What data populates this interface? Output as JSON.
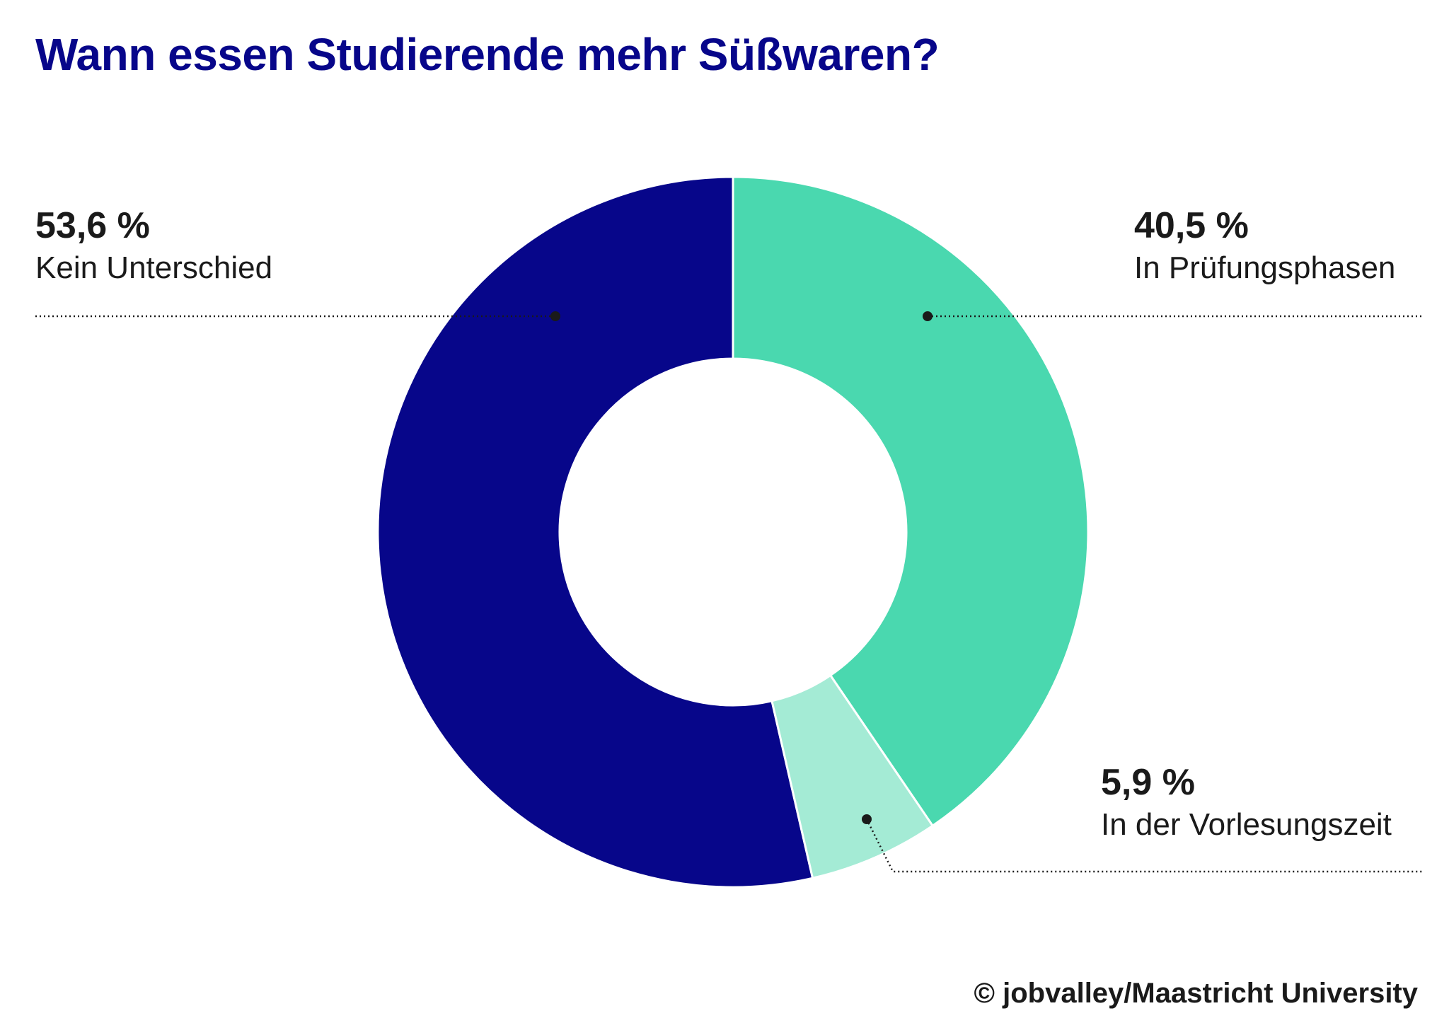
{
  "chart_data": {
    "type": "pie",
    "donut": true,
    "title": "Wann essen Studierende mehr Süßwaren?",
    "slices": [
      {
        "label": "Kein Unterschied",
        "value": 53.6,
        "value_label": "53,6 %",
        "color": "#07068a"
      },
      {
        "label": "In Prüfungsphasen",
        "value": 40.5,
        "value_label": "40,5 %",
        "color": "#4ad8af"
      },
      {
        "label": "In der Vorlesungszeit",
        "value": 5.9,
        "value_label": "5,9 %",
        "color": "#a4ebd5"
      }
    ],
    "source": "© jobvalley/Maastricht University"
  }
}
